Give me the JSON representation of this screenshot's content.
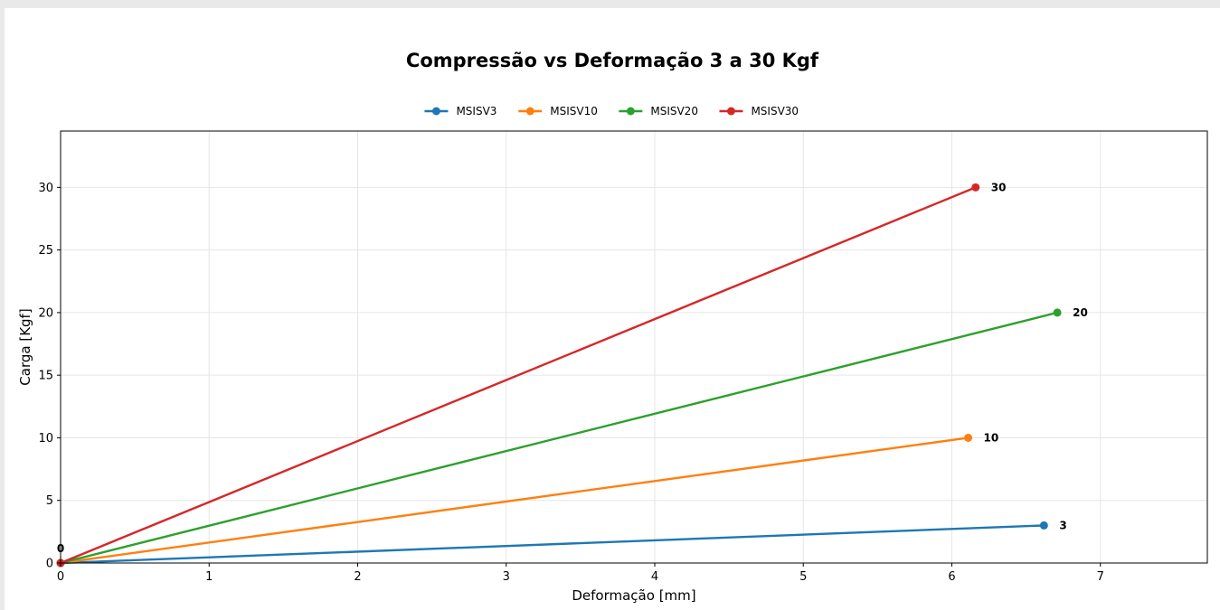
{
  "chart_data": {
    "type": "line",
    "title": "Compressão vs Deformação 3 a 30 Kgf",
    "xlabel": "Deformação [mm]",
    "ylabel": "Carga [Kgf]",
    "xlim": [
      0,
      7.72
    ],
    "ylim": [
      0,
      34.5
    ],
    "xticks": [
      0,
      1,
      2,
      3,
      4,
      5,
      6,
      7
    ],
    "yticks": [
      0,
      5,
      10,
      15,
      20,
      25,
      30
    ],
    "grid": true,
    "legend_position": "top-center",
    "origin_label": "0",
    "series": [
      {
        "name": "MSISV3",
        "color": "#1f77b4",
        "x": [
          0,
          6.62
        ],
        "y": [
          0,
          3
        ],
        "end_label": "3"
      },
      {
        "name": "MSISV10",
        "color": "#ff7f0e",
        "x": [
          0,
          6.11
        ],
        "y": [
          0,
          10
        ],
        "end_label": "10"
      },
      {
        "name": "MSISV20",
        "color": "#2ca02c",
        "x": [
          0,
          6.71
        ],
        "y": [
          0,
          20
        ],
        "end_label": "20"
      },
      {
        "name": "MSISV30",
        "color": "#d62728",
        "x": [
          0,
          6.16
        ],
        "y": [
          0,
          30
        ],
        "end_label": "30"
      }
    ]
  }
}
